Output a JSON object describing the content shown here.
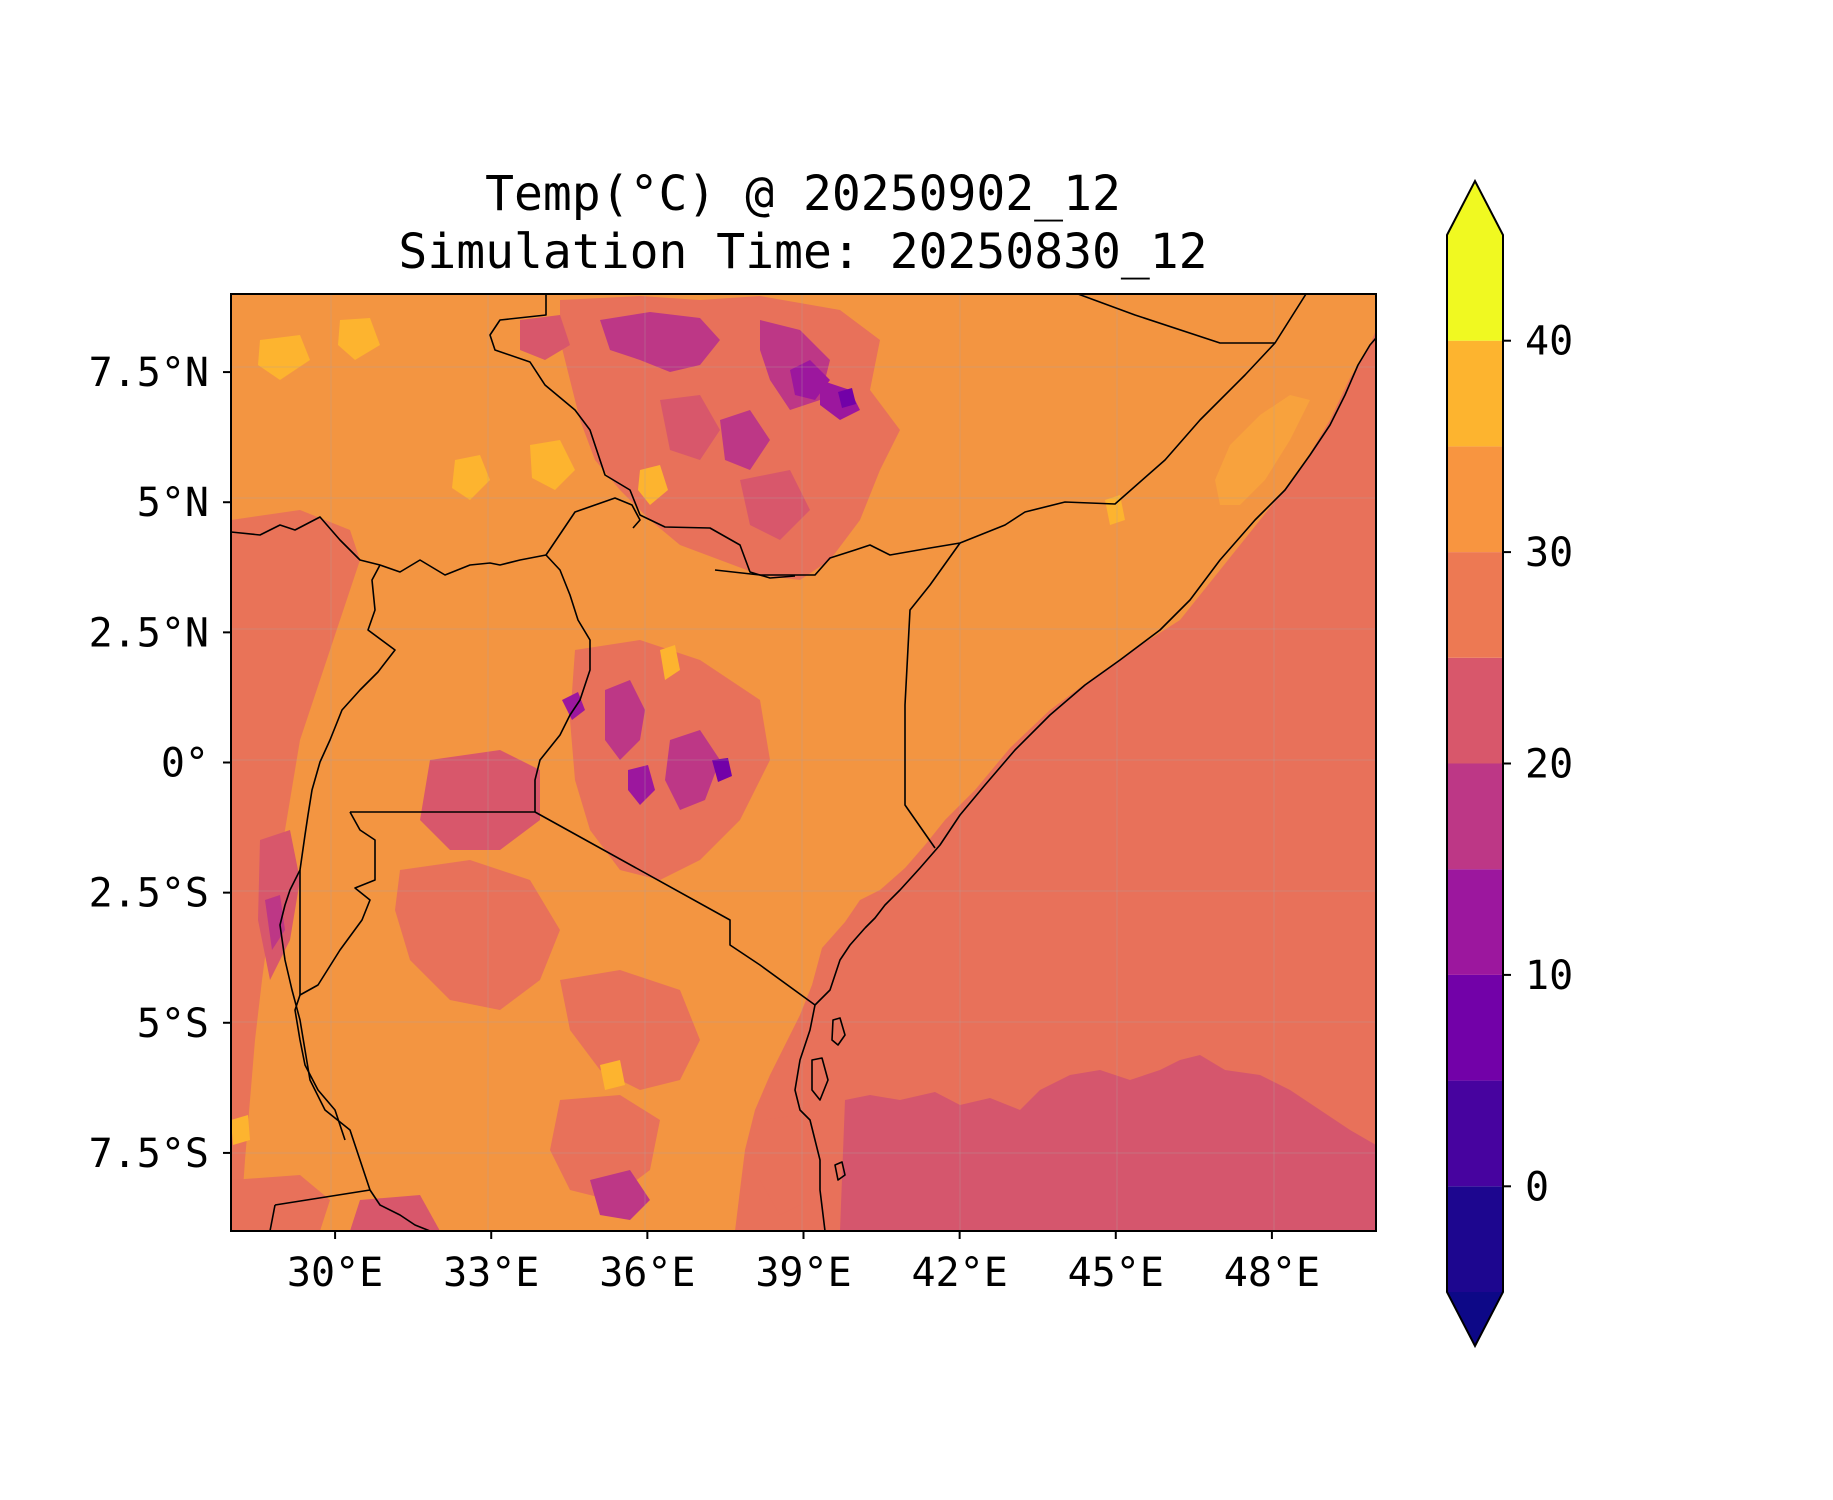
{
  "title": {
    "line1": "Temp(°C) @ 20250902_12",
    "line2": "Simulation Time: 20250830_12"
  },
  "axes": {
    "x_ticks": [
      "30°E",
      "33°E",
      "36°E",
      "39°E",
      "42°E",
      "45°E",
      "48°E"
    ],
    "y_ticks": [
      "7.5°N",
      "5°N",
      "2.5°N",
      "0°",
      "2.5°S",
      "5°S",
      "7.5°S"
    ],
    "lon_range": [
      28,
      50
    ],
    "lat_range": [
      -9,
      9
    ]
  },
  "colorbar": {
    "levels": [
      -5,
      0,
      5,
      10,
      15,
      20,
      25,
      30,
      35,
      40,
      45
    ],
    "colors": [
      "#1d068f",
      "#47039f",
      "#7201a8",
      "#9c179e",
      "#bd3786",
      "#d8576b",
      "#ed7953",
      "#f89540",
      "#fdb42f",
      "#f0f921"
    ],
    "under_color": "#0d0887",
    "over_color": "#f0f921",
    "tick_labels": [
      "0",
      "10",
      "20",
      "30",
      "40"
    ],
    "extend": "both"
  },
  "map": {
    "colormap": "plasma",
    "ocean_color": "#e8715a",
    "land_base_color": "#f39541",
    "gridlines": true,
    "coastlines": true,
    "borders": true
  }
}
